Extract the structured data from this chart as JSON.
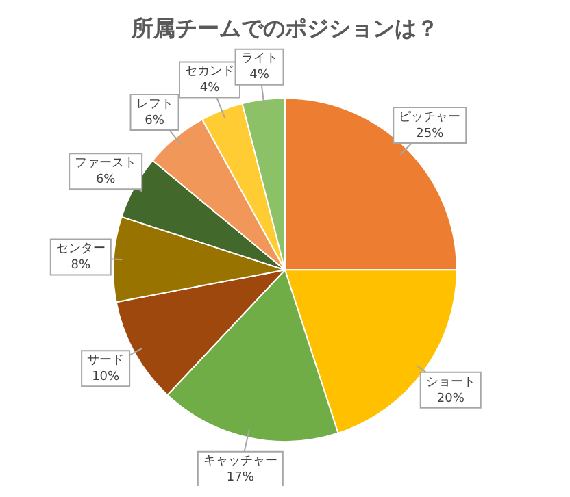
{
  "chart_data": {
    "type": "pie",
    "title": "所属チームでのポジションは？",
    "categories": [
      "ピッチャー",
      "ショート",
      "キャッチャー",
      "サード",
      "センター",
      "ファースト",
      "レフト",
      "セカンド",
      "ライト"
    ],
    "values": [
      25,
      20,
      17,
      10,
      8,
      6,
      6,
      4,
      4
    ],
    "colors": [
      "#ed7d31",
      "#ffc000",
      "#70ad47",
      "#9e480e",
      "#997300",
      "#43682b",
      "#f1975a",
      "#ffcd33",
      "#8cc168"
    ],
    "value_labels": [
      "25%",
      "20%",
      "17%",
      "10%",
      "8%",
      "6%",
      "6%",
      "4%",
      "4%"
    ],
    "legend": false
  }
}
